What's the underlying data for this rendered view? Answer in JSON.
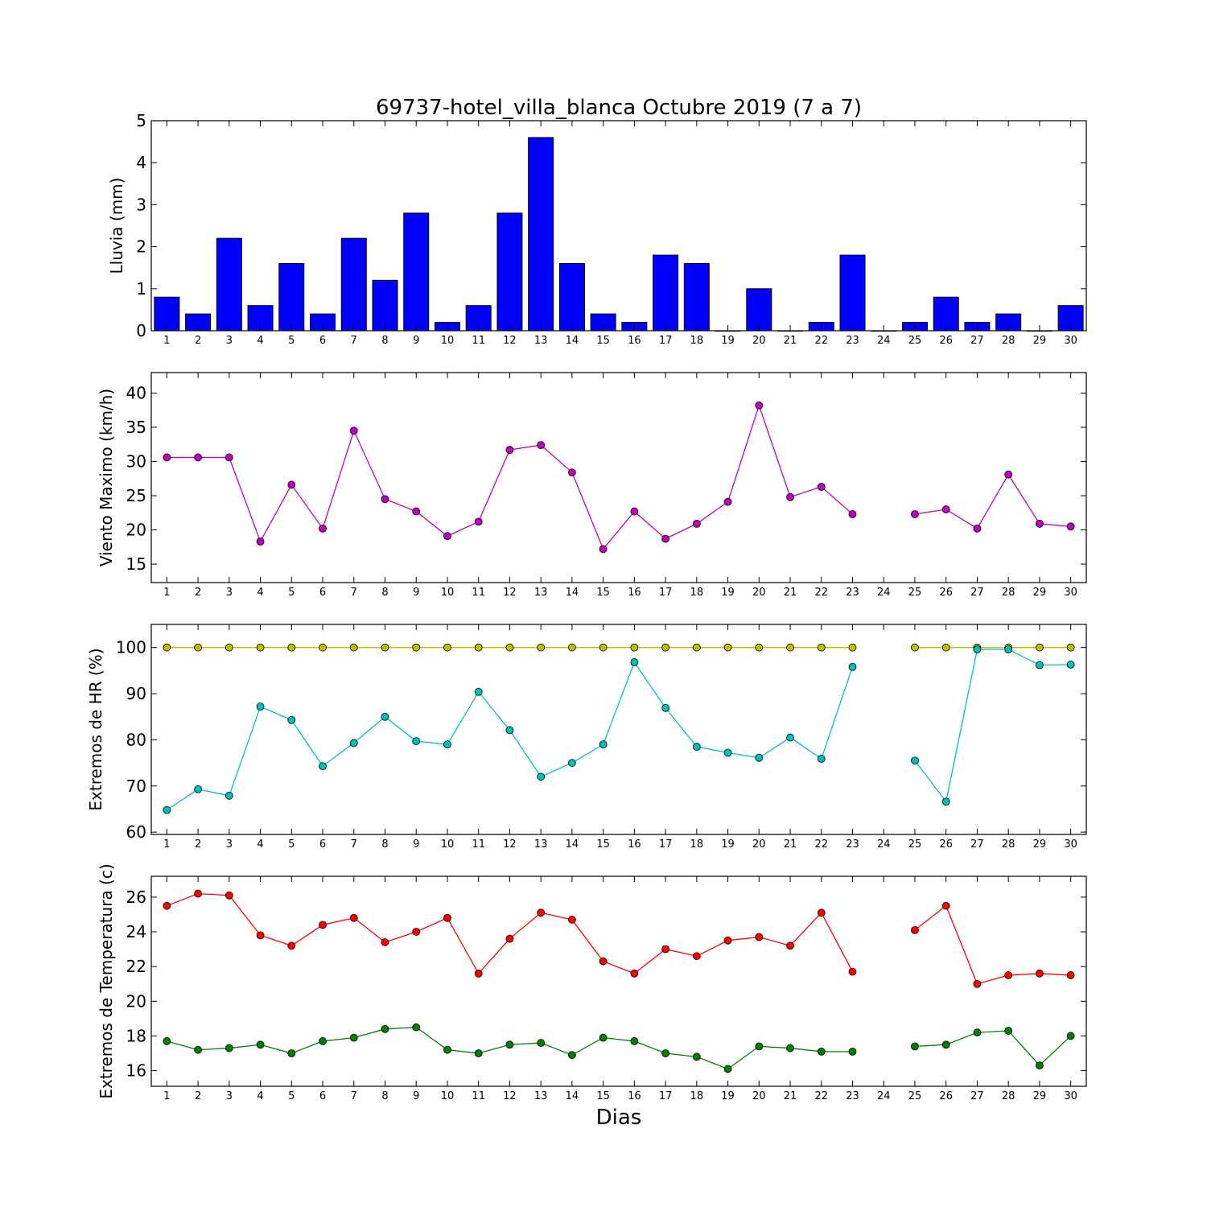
{
  "chart_data": [
    {
      "type": "bar",
      "title": "69737-hotel_villa_blanca Octubre 2019  (7 a 7)",
      "xlabel": "",
      "ylabel": "Lluvia (mm)",
      "categories": [
        "1",
        "2",
        "3",
        "4",
        "5",
        "6",
        "7",
        "8",
        "9",
        "10",
        "11",
        "12",
        "13",
        "14",
        "15",
        "16",
        "17",
        "18",
        "19",
        "20",
        "21",
        "22",
        "23",
        "24",
        "25",
        "26",
        "27",
        "28",
        "29",
        "30"
      ],
      "values": [
        0.8,
        0.4,
        2.2,
        0.6,
        1.6,
        0.4,
        2.2,
        1.2,
        2.8,
        0.2,
        0.6,
        2.8,
        4.6,
        1.6,
        0.4,
        0.2,
        1.8,
        1.6,
        0.0,
        1.0,
        0.0,
        0.2,
        1.8,
        0.0,
        0.2,
        0.8,
        0.2,
        0.4,
        0.0,
        0.6
      ],
      "ylim": [
        0,
        5
      ],
      "yticks": [
        0,
        1,
        2,
        3,
        4,
        5
      ],
      "color": "#0000ff"
    },
    {
      "type": "line",
      "title": "",
      "xlabel": "",
      "ylabel": "Viento Maximo (km/h)",
      "x": [
        1,
        2,
        3,
        4,
        5,
        6,
        7,
        8,
        9,
        10,
        11,
        12,
        13,
        14,
        15,
        16,
        17,
        18,
        19,
        20,
        21,
        22,
        23,
        24,
        25,
        26,
        27,
        28,
        29,
        30
      ],
      "series": [
        {
          "values": [
            30.6,
            30.6,
            30.6,
            18.3,
            26.6,
            20.2,
            34.5,
            24.5,
            22.7,
            19.1,
            21.2,
            31.7,
            32.4,
            28.4,
            17.2,
            22.7,
            18.7,
            20.9,
            24.1,
            38.2,
            24.8,
            26.3,
            22.3,
            null,
            22.3,
            23.0,
            20.2,
            28.1,
            20.9,
            20.5
          ],
          "color": "#bf00bf"
        }
      ],
      "ylim": [
        12.3,
        43
      ],
      "yticks": [
        15,
        20,
        25,
        30,
        35,
        40
      ]
    },
    {
      "type": "line",
      "title": "",
      "xlabel": "",
      "ylabel": "Extremos de HR (%)",
      "x": [
        1,
        2,
        3,
        4,
        5,
        6,
        7,
        8,
        9,
        10,
        11,
        12,
        13,
        14,
        15,
        16,
        17,
        18,
        19,
        20,
        21,
        22,
        23,
        24,
        25,
        26,
        27,
        28,
        29,
        30
      ],
      "series": [
        {
          "values": [
            100,
            100,
            100,
            100,
            100,
            100,
            100,
            100,
            100,
            100,
            100,
            100,
            100,
            100,
            100,
            100,
            100,
            100,
            100,
            100,
            100,
            100,
            100,
            null,
            100,
            100,
            100,
            100,
            100,
            100
          ],
          "color": "#bfbf00"
        },
        {
          "values": [
            64.8,
            69.3,
            67.9,
            87.2,
            84.3,
            74.3,
            79.3,
            85.0,
            79.7,
            79.0,
            90.4,
            82.1,
            72.0,
            75.0,
            79.0,
            96.8,
            86.9,
            78.5,
            77.2,
            76.1,
            80.5,
            75.9,
            95.8,
            null,
            75.5,
            66.6,
            99.6,
            99.6,
            96.2,
            96.3
          ],
          "color": "#00bfbf"
        }
      ],
      "ylim": [
        59.5,
        105
      ],
      "yticks": [
        60,
        70,
        80,
        90,
        100
      ]
    },
    {
      "type": "line",
      "title": "",
      "xlabel": "Dias",
      "ylabel": "Extremos de Temperatura (c)",
      "x": [
        1,
        2,
        3,
        4,
        5,
        6,
        7,
        8,
        9,
        10,
        11,
        12,
        13,
        14,
        15,
        16,
        17,
        18,
        19,
        20,
        21,
        22,
        23,
        24,
        25,
        26,
        27,
        28,
        29,
        30
      ],
      "series": [
        {
          "values": [
            25.5,
            26.2,
            26.1,
            23.8,
            23.2,
            24.4,
            24.8,
            23.4,
            24.0,
            24.8,
            21.6,
            23.6,
            25.1,
            24.7,
            22.3,
            21.6,
            23.0,
            22.6,
            23.5,
            23.7,
            23.2,
            25.1,
            21.7,
            null,
            24.1,
            25.5,
            21.0,
            21.5,
            21.6,
            21.5
          ],
          "color": "#ff0000"
        },
        {
          "values": [
            17.7,
            17.2,
            17.3,
            17.5,
            17.0,
            17.7,
            17.9,
            18.4,
            18.5,
            17.2,
            17.0,
            17.5,
            17.6,
            16.9,
            17.9,
            17.7,
            17.0,
            16.8,
            16.1,
            17.4,
            17.3,
            17.1,
            17.1,
            null,
            17.4,
            17.5,
            18.2,
            18.3,
            16.3,
            18.0
          ],
          "color": "#008000"
        }
      ],
      "ylim": [
        15.1,
        27.2
      ],
      "yticks": [
        16,
        18,
        20,
        22,
        24,
        26
      ]
    }
  ]
}
